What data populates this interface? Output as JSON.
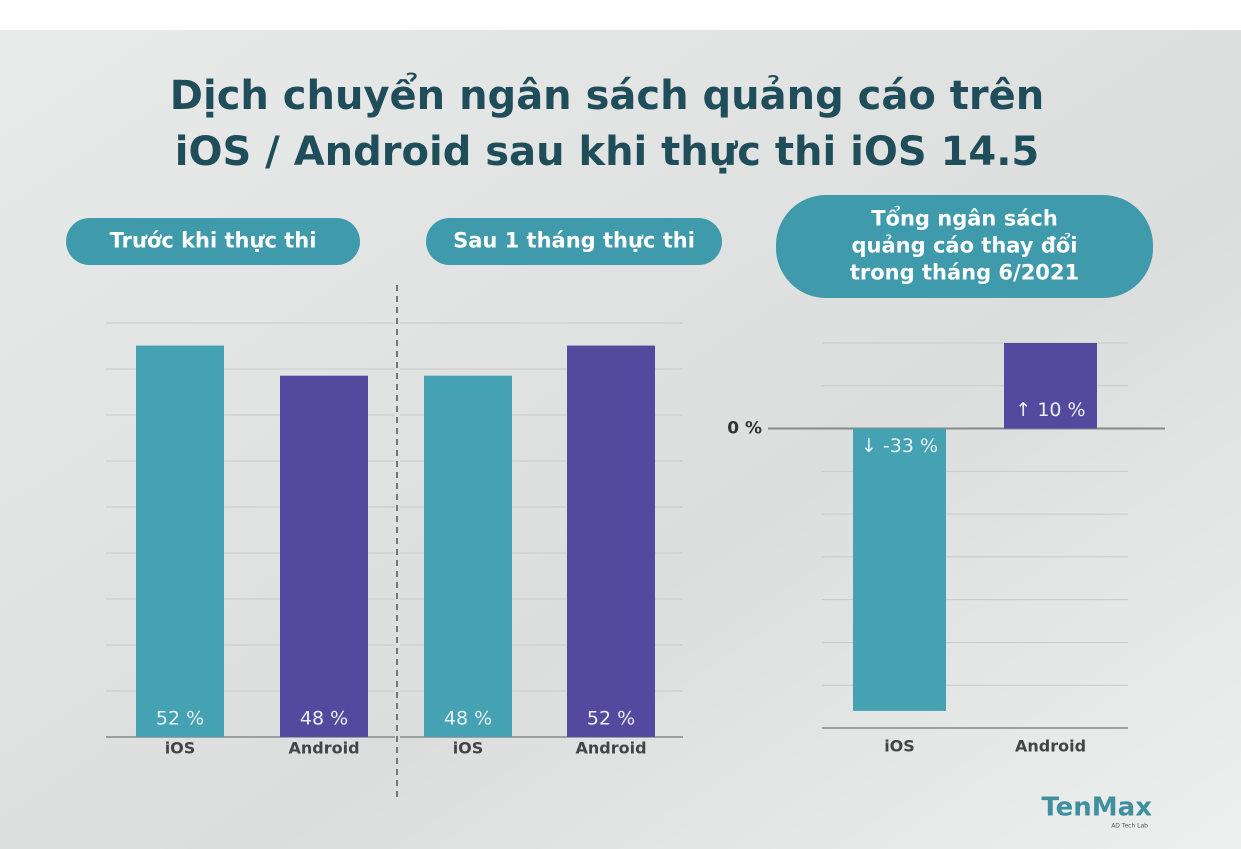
{
  "title": [
    "Dịch chuyển ngân sách quảng cáo trên",
    "iOS / Android sau khi thực thi iOS 14.5"
  ],
  "chart_data": [
    {
      "type": "bar",
      "title": [
        "Trước khi thực thi"
      ],
      "categories": [
        "iOS",
        "Android"
      ],
      "values": [
        52,
        48
      ],
      "value_labels": [
        "52 %",
        "48 %"
      ],
      "colors": [
        "#45a2b3",
        "#54499e"
      ],
      "ylim": [
        0,
        55
      ],
      "yticks": []
    },
    {
      "type": "bar",
      "title": [
        "Sau 1 tháng thực thi"
      ],
      "categories": [
        "iOS",
        "Android"
      ],
      "values": [
        48,
        52
      ],
      "value_labels": [
        "48 %",
        "52 %"
      ],
      "colors": [
        "#45a2b3",
        "#54499e"
      ],
      "ylim": [
        0,
        55
      ],
      "yticks": []
    },
    {
      "type": "bar",
      "title": [
        "Tổng ngân sách",
        "quảng cáo thay đổi",
        "trong tháng 6/2021"
      ],
      "categories": [
        "iOS",
        "Android"
      ],
      "values": [
        -33,
        10
      ],
      "value_labels": [
        "↓ -33 %",
        "↑ 10 %"
      ],
      "colors": [
        "#45a2b3",
        "#54499e"
      ],
      "ylim": [
        -35,
        10
      ],
      "yticks": [
        {
          "value": 0,
          "label": "0 %"
        }
      ]
    }
  ],
  "logo": {
    "name": "TenMax",
    "tagline": "AD Tech Lab"
  }
}
